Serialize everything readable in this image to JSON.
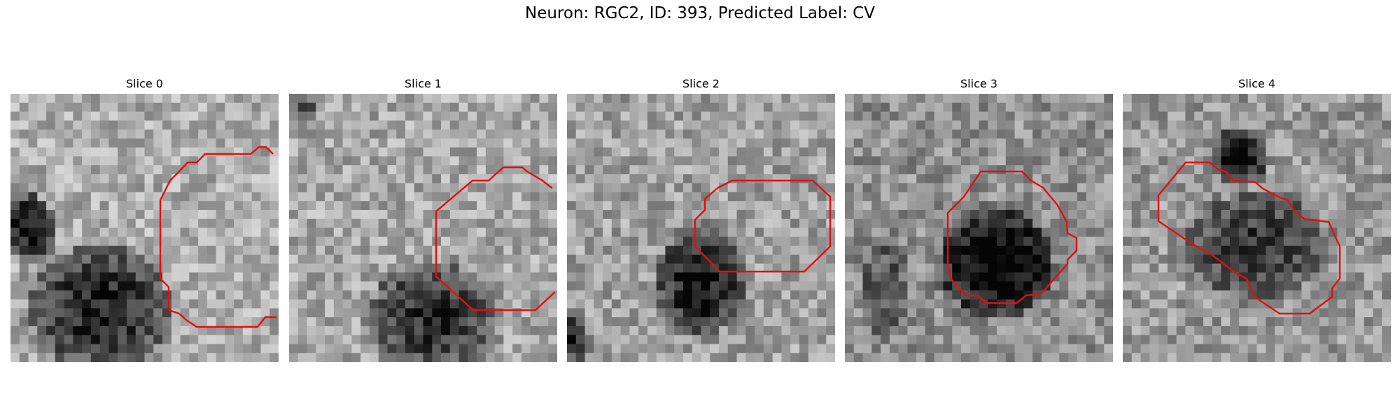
{
  "figure": {
    "title": "Neuron: RGC2, ID: 393, Predicted Label: CV"
  },
  "panels": [
    {
      "title": "Slice 0"
    },
    {
      "title": "Slice 1"
    },
    {
      "title": "Slice 2"
    },
    {
      "title": "Slice 3"
    },
    {
      "title": "Slice 4"
    }
  ],
  "colors": {
    "contour": "#e01010",
    "background": "#ffffff"
  }
}
